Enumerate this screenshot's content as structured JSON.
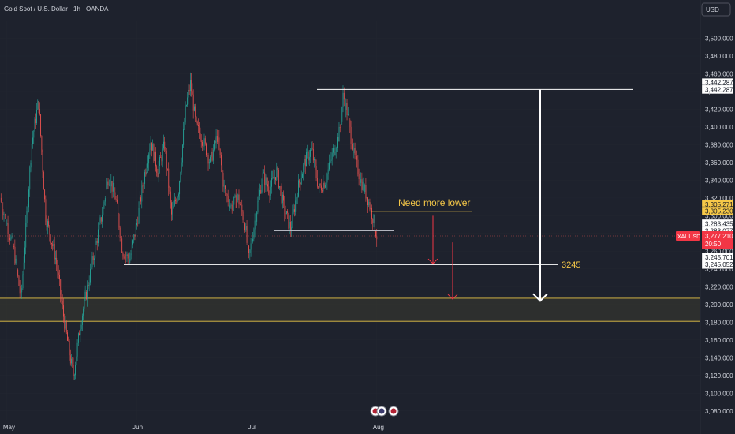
{
  "header": {
    "title": "Gold Spot / U.S. Dollar · 1h · OANDA",
    "currency_button": "USD"
  },
  "colors": {
    "background": "#1e222d",
    "grid": "#2a2e39",
    "up": "#26a69a",
    "down": "#ef5350",
    "axis_text": "#d1d4dc",
    "annotation_yellow": "#f7c948",
    "annotation_white": "#ffffff",
    "annotation_red": "#f23645",
    "zone_border": "#e8c547",
    "current_price_bg": "#f23645"
  },
  "chart_data": {
    "type": "candlestick",
    "symbol": "XAUUSD",
    "interval": "1h",
    "ylim": [
      3070,
      3520
    ],
    "y_ticks": [
      3080,
      3100,
      3120,
      3140,
      3160,
      3180,
      3200,
      3220,
      3240,
      3260,
      3280,
      3300,
      3320,
      3340,
      3360,
      3380,
      3400,
      3420,
      3440,
      3460,
      3480,
      3500
    ],
    "y_tick_labels": [
      "3,080.000",
      "3,100.000",
      "3,120.000",
      "3,140.000",
      "3,160.000",
      "3,180.000",
      "3,200.000",
      "3,220.000",
      "3,240.000",
      "3,260.000",
      "3,280.000",
      "3,300.000",
      "3,320.000",
      "3,340.000",
      "3,360.000",
      "3,380.000",
      "3,400.000",
      "3,420.000",
      "3,440.000",
      "3,460.000",
      "3,480.000",
      "3,500.000"
    ],
    "x_labels": [
      {
        "label": "May",
        "t": 0.01
      },
      {
        "label": "Jun",
        "t": 0.195
      },
      {
        "label": "Jul",
        "t": 0.36
      },
      {
        "label": "Aug",
        "t": 0.538
      }
    ],
    "price_path": [
      [
        0.0,
        3320
      ],
      [
        0.02,
        3260
      ],
      [
        0.03,
        3205
      ],
      [
        0.045,
        3380
      ],
      [
        0.055,
        3430
      ],
      [
        0.065,
        3300
      ],
      [
        0.08,
        3250
      ],
      [
        0.09,
        3190
      ],
      [
        0.1,
        3140
      ],
      [
        0.105,
        3120
      ],
      [
        0.115,
        3180
      ],
      [
        0.125,
        3220
      ],
      [
        0.135,
        3260
      ],
      [
        0.145,
        3300
      ],
      [
        0.155,
        3345
      ],
      [
        0.165,
        3320
      ],
      [
        0.175,
        3260
      ],
      [
        0.185,
        3250
      ],
      [
        0.195,
        3290
      ],
      [
        0.205,
        3340
      ],
      [
        0.215,
        3385
      ],
      [
        0.225,
        3350
      ],
      [
        0.235,
        3380
      ],
      [
        0.245,
        3300
      ],
      [
        0.255,
        3330
      ],
      [
        0.265,
        3420
      ],
      [
        0.272,
        3450
      ],
      [
        0.28,
        3400
      ],
      [
        0.29,
        3385
      ],
      [
        0.3,
        3360
      ],
      [
        0.31,
        3390
      ],
      [
        0.32,
        3330
      ],
      [
        0.33,
        3310
      ],
      [
        0.34,
        3320
      ],
      [
        0.35,
        3290
      ],
      [
        0.355,
        3250
      ],
      [
        0.365,
        3300
      ],
      [
        0.375,
        3345
      ],
      [
        0.385,
        3330
      ],
      [
        0.395,
        3350
      ],
      [
        0.405,
        3310
      ],
      [
        0.415,
        3285
      ],
      [
        0.425,
        3330
      ],
      [
        0.435,
        3360
      ],
      [
        0.445,
        3375
      ],
      [
        0.455,
        3330
      ],
      [
        0.465,
        3340
      ],
      [
        0.475,
        3370
      ],
      [
        0.485,
        3395
      ],
      [
        0.49,
        3435
      ],
      [
        0.495,
        3420
      ],
      [
        0.505,
        3370
      ],
      [
        0.515,
        3340
      ],
      [
        0.525,
        3320
      ],
      [
        0.532,
        3300
      ],
      [
        0.538,
        3277
      ]
    ],
    "axis_markers": [
      {
        "label": "3,442.287",
        "value": 3450
      },
      {
        "label": "3,442.287",
        "value": 3442.287
      },
      {
        "label": "3,305.271",
        "value": 3313
      },
      {
        "label": "3,305.230",
        "value": 3305.23
      },
      {
        "label": "3,283.435",
        "value": 3291
      },
      {
        "label": "3,283.077",
        "value": 3283.077
      },
      {
        "label": "3,245.701",
        "value": 3253
      },
      {
        "label": "3,245.052",
        "value": 3245.052
      }
    ],
    "current_price": {
      "symbol_label": "XAUUSD",
      "price_label": "3,277.210",
      "countdown": "20:50",
      "value": 3277.21
    },
    "annotations": {
      "upper_line_value": 3442.287,
      "support_label": "3245",
      "support_value": 3245,
      "note_text": "Need more lower",
      "note_line_value": 3305,
      "small_line_value": 3283,
      "zone": [
        3181,
        3207
      ],
      "arrows": [
        {
          "color": "white",
          "from": 3442,
          "to": 3204
        },
        {
          "color": "red",
          "from": 3300,
          "to": 3246
        },
        {
          "color": "red",
          "from": 3270,
          "to": 3206
        }
      ]
    }
  }
}
